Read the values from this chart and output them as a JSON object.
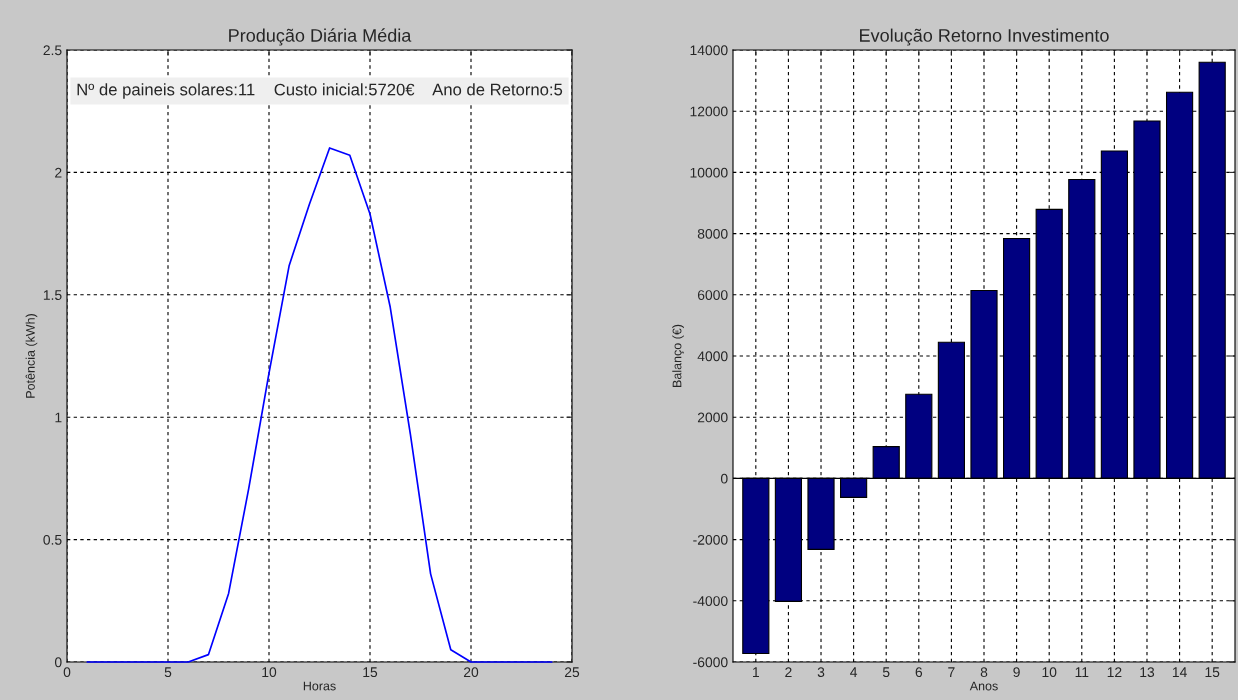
{
  "chart_data": [
    {
      "type": "line",
      "title": "Produção Diária Média",
      "xlabel": "Horas",
      "ylabel": "Potência (kWh)",
      "x": [
        1,
        2,
        3,
        4,
        5,
        6,
        7,
        8,
        9,
        10,
        11,
        12,
        13,
        14,
        15,
        16,
        17,
        18,
        19,
        20,
        21,
        22,
        23,
        24
      ],
      "values": [
        0,
        0,
        0,
        0,
        0,
        0,
        0.03,
        0.28,
        0.71,
        1.18,
        1.62,
        1.87,
        2.1,
        2.07,
        1.83,
        1.45,
        0.93,
        0.36,
        0.05,
        0,
        0,
        0,
        0,
        0
      ],
      "color": "#0000ff",
      "xlim": [
        0,
        25
      ],
      "ylim": [
        0,
        2.5
      ],
      "xticks": [
        0,
        5,
        10,
        15,
        20,
        25
      ],
      "yticks": [
        0,
        0.5,
        1,
        1.5,
        2,
        2.5
      ],
      "grid": true,
      "annotations": [
        "Nº de paineis solares:11    Custo inicial:5720€    Ano de Retorno:5"
      ]
    },
    {
      "type": "bar",
      "title": "Evolução Retorno Investimento",
      "xlabel": "Anos",
      "ylabel": "Balanço (€)",
      "categories": [
        "1",
        "2",
        "3",
        "4",
        "5",
        "6",
        "7",
        "8",
        "9",
        "10",
        "11",
        "12",
        "13",
        "14",
        "15"
      ],
      "values": [
        -5720,
        -4020,
        -2320,
        -620,
        1040,
        2750,
        4450,
        6140,
        7840,
        8790,
        9770,
        10700,
        11680,
        12620,
        13600
      ],
      "color": "#000080",
      "ylim": [
        -6000,
        14000
      ],
      "yticks": [
        -6000,
        -4000,
        -2000,
        0,
        2000,
        4000,
        6000,
        8000,
        10000,
        12000,
        14000
      ],
      "grid": true
    }
  ]
}
